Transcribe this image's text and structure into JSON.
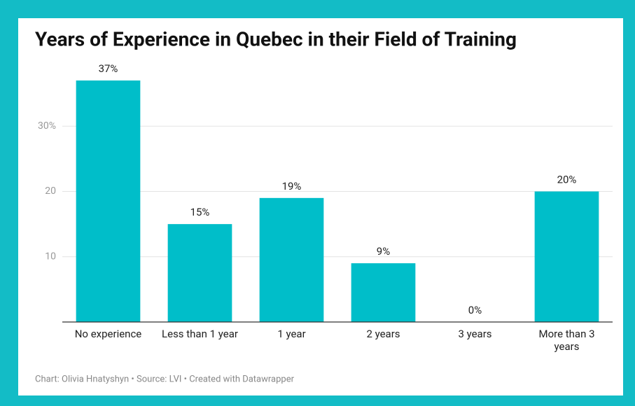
{
  "chart_data": {
    "type": "bar",
    "title": "Years of Experience in Quebec in their Field of Training",
    "categories": [
      "No experience",
      "Less than 1 year",
      "1 year",
      "2 years",
      "3 years",
      "More than 3 years"
    ],
    "values": [
      37,
      15,
      19,
      9,
      0,
      20
    ],
    "value_labels": [
      "37%",
      "15%",
      "19%",
      "9%",
      "0%",
      "20%"
    ],
    "color": "#00bec9",
    "ylim": [
      0,
      40
    ],
    "yticks": [
      10,
      20,
      {
        "value": 30,
        "label": "30%"
      }
    ],
    "grid": true,
    "note": "Chart: Olivia Hnatyshyn • Source: LVI • Created with Datawrapper"
  }
}
